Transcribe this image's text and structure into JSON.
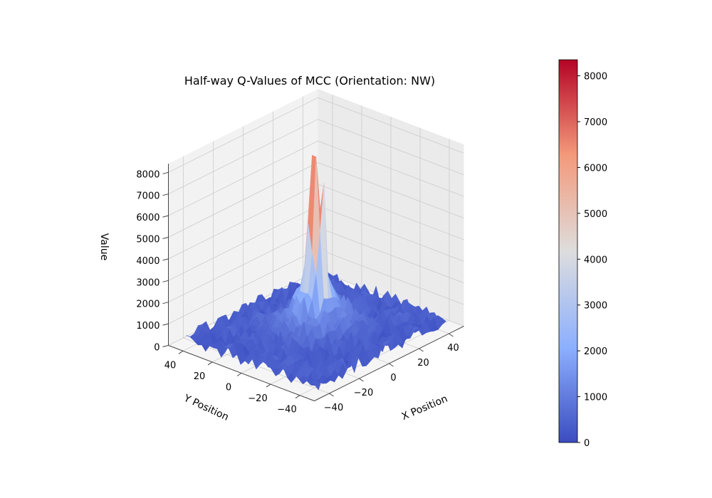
{
  "chart_data": {
    "type": "surface",
    "title": "Half-way Q-Values of MCC (Orientation: NW)",
    "xlabel": "X Position",
    "ylabel": "Y Position",
    "zlabel": "Value",
    "xlim": [
      -50,
      50
    ],
    "ylim": [
      -50,
      50
    ],
    "zlim": [
      0,
      8400
    ],
    "x_ticks": [
      -40,
      -20,
      0,
      20,
      40
    ],
    "x_tick_labels": [
      "−40",
      "−20",
      "0",
      "20",
      "40"
    ],
    "y_ticks": [
      -40,
      -20,
      0,
      20,
      40
    ],
    "y_tick_labels": [
      "−40",
      "−20",
      "0",
      "20",
      "40"
    ],
    "z_ticks": [
      0,
      1000,
      2000,
      3000,
      4000,
      5000,
      6000,
      7000,
      8000
    ],
    "z_tick_labels": [
      "0",
      "1000",
      "2000",
      "3000",
      "4000",
      "5000",
      "6000",
      "7000",
      "8000"
    ],
    "grid": true,
    "colormap": "coolwarm",
    "colorbar": {
      "range": [
        0,
        8350
      ],
      "ticks": [
        0,
        1000,
        2000,
        3000,
        4000,
        5000,
        6000,
        7000,
        8000
      ],
      "tick_labels": [
        "0",
        "1000",
        "2000",
        "3000",
        "4000",
        "5000",
        "6000",
        "7000",
        "8000"
      ]
    },
    "surface_summary": {
      "peak": {
        "x": 0,
        "y": 0,
        "value": 8350
      },
      "secondary_peak": {
        "x": 2,
        "y": -3,
        "value": 7100
      },
      "floor_value": 0,
      "edge_noise_max": 900
    },
    "colors": {
      "low": "#3b4cc0",
      "mid": "#dddddd",
      "high": "#b40426",
      "pane_back": "#f2f2f2",
      "pane_side": "#ebebeb",
      "pane_floor": "#f5f5f5",
      "grid": "#cccccc"
    }
  }
}
